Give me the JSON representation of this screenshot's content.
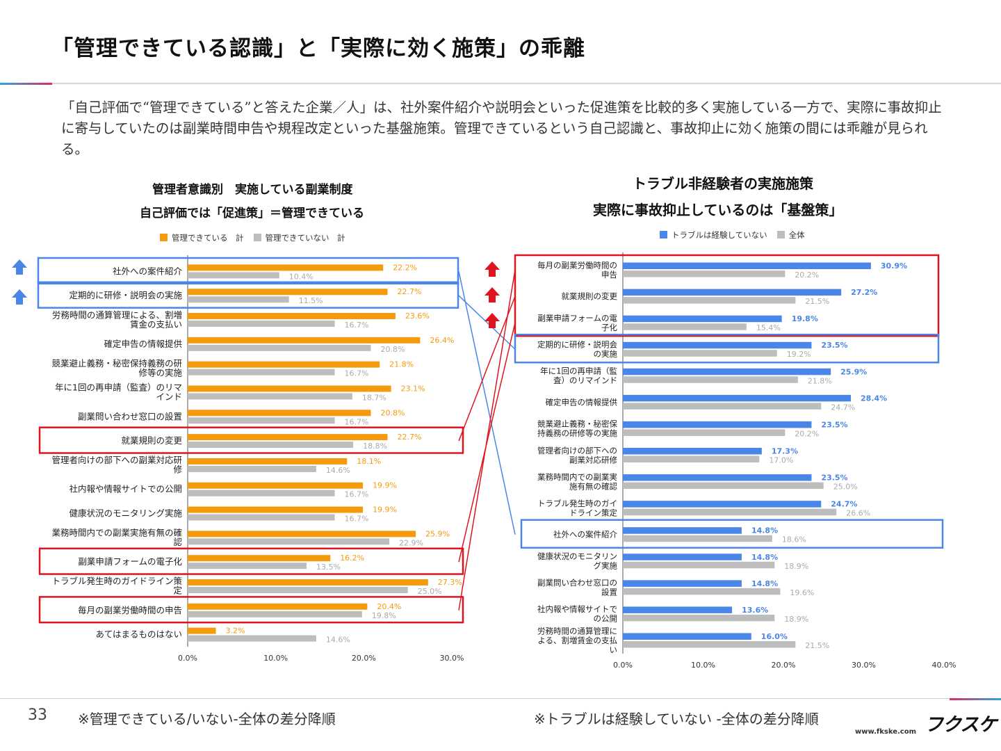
{
  "title": "「管理できている認識」と「実際に効く施策」の乖離",
  "description": "「自己評価で“管理できている”と答えた企業／人」は、社外案件紹介や説明会といった促進策を比較的多く実施している一方で、実際に事故抑止に寄与していたのは副業時間申告や規程改定といった基盤施策。管理できているという自己認識と、事故抑止に効く施策の間には乖離が見られる。",
  "left_title_1": "管理者意識別　実施している副業制度",
  "left_title_2": "自己評価では「促進策」＝管理できている",
  "right_title_1": "トラブル非経験者の実施施策",
  "right_title_2": "実際に事故抑止しているのは「基盤策」",
  "page_number": "33",
  "note_left": "※管理できている/いない-全体の差分降順",
  "note_right": "※トラブルは経験していない -全体の差分降順",
  "logo": "フクスケ",
  "url": "www.fkske.com",
  "colors": {
    "orange": "#f59a0c",
    "gray": "#bdbdbd",
    "blue": "#4a86e8",
    "red_box": "#e0141e",
    "blue_box": "#4a86e8",
    "up_arrow_blue": "#4a86e8",
    "up_arrow_red": "#e0141e"
  },
  "chart_data": [
    {
      "type": "bar",
      "orientation": "horizontal",
      "categories": [
        "社外への案件紹介",
        "定期的に研修・説明会の実施",
        "労務時間の通算管理による、割増賃金の支払い",
        "確定申告の情報提供",
        "競業避止義務・秘密保持義務の研修等の実施",
        "年に1回の再申請（監査）のリマインド",
        "副業問い合わせ窓口の設置",
        "就業規則の変更",
        "管理者向けの部下への副業対応研修",
        "社内報や情報サイトでの公開",
        "健康状況のモニタリング実施",
        "業務時間内での副業実施有無の確認",
        "副業申請フォームの電子化",
        "トラブル発生時のガイドライン策定",
        "毎月の副業労働時間の申告",
        "あてはまるものはない"
      ],
      "series": [
        {
          "name": "管理できている　計",
          "values": [
            22.2,
            22.7,
            23.6,
            26.4,
            21.8,
            23.1,
            20.8,
            22.7,
            18.1,
            19.9,
            19.9,
            25.9,
            16.2,
            27.3,
            20.4,
            3.2
          ]
        },
        {
          "name": "管理できていない　計",
          "values": [
            10.4,
            11.5,
            16.7,
            20.8,
            16.7,
            18.7,
            16.7,
            18.8,
            14.6,
            16.7,
            16.7,
            22.9,
            13.5,
            25.0,
            19.8,
            14.6
          ]
        }
      ],
      "x_ticks": [
        "0.0%",
        "10.0%",
        "20.0%",
        "30.0%"
      ],
      "xlim": [
        0,
        30
      ],
      "legend_position": "top",
      "highlight_blue": [
        0,
        1
      ],
      "highlight_red": [
        7,
        12,
        14
      ]
    },
    {
      "type": "bar",
      "orientation": "horizontal",
      "categories": [
        "毎月の副業労働時間の申告",
        "就業規則の変更",
        "副業申請フォームの電子化",
        "定期的に研修・説明会の実施",
        "年に1回の再申請（監査）のリマインド",
        "確定申告の情報提供",
        "競業避止義務・秘密保持義務の研修等の実施",
        "管理者向けの部下への副業対応研修",
        "業務時間内での副業実施有無の確認",
        "トラブル発生時のガイドライン策定",
        "社外への案件紹介",
        "健康状況のモニタリング実施",
        "副業問い合わせ窓口の設置",
        "社内報や情報サイトでの公開",
        "労務時間の通算管理による、割増賃金の支払い"
      ],
      "series": [
        {
          "name": "トラブルは経験していない",
          "values": [
            30.9,
            27.2,
            19.8,
            23.5,
            25.9,
            28.4,
            23.5,
            17.3,
            23.5,
            24.7,
            14.8,
            14.8,
            14.8,
            13.6,
            16.0
          ]
        },
        {
          "name": "全体",
          "values": [
            20.2,
            21.5,
            15.4,
            19.2,
            21.8,
            24.7,
            20.2,
            17.0,
            25.0,
            26.6,
            18.6,
            18.9,
            19.6,
            18.9,
            21.5
          ]
        }
      ],
      "x_ticks": [
        "0.0%",
        "10.0%",
        "20.0%",
        "30.0%",
        "40.0%"
      ],
      "xlim": [
        0,
        40
      ],
      "legend_position": "top",
      "highlight_red": [
        0,
        1,
        2
      ],
      "highlight_blue": [
        3,
        10
      ]
    }
  ]
}
